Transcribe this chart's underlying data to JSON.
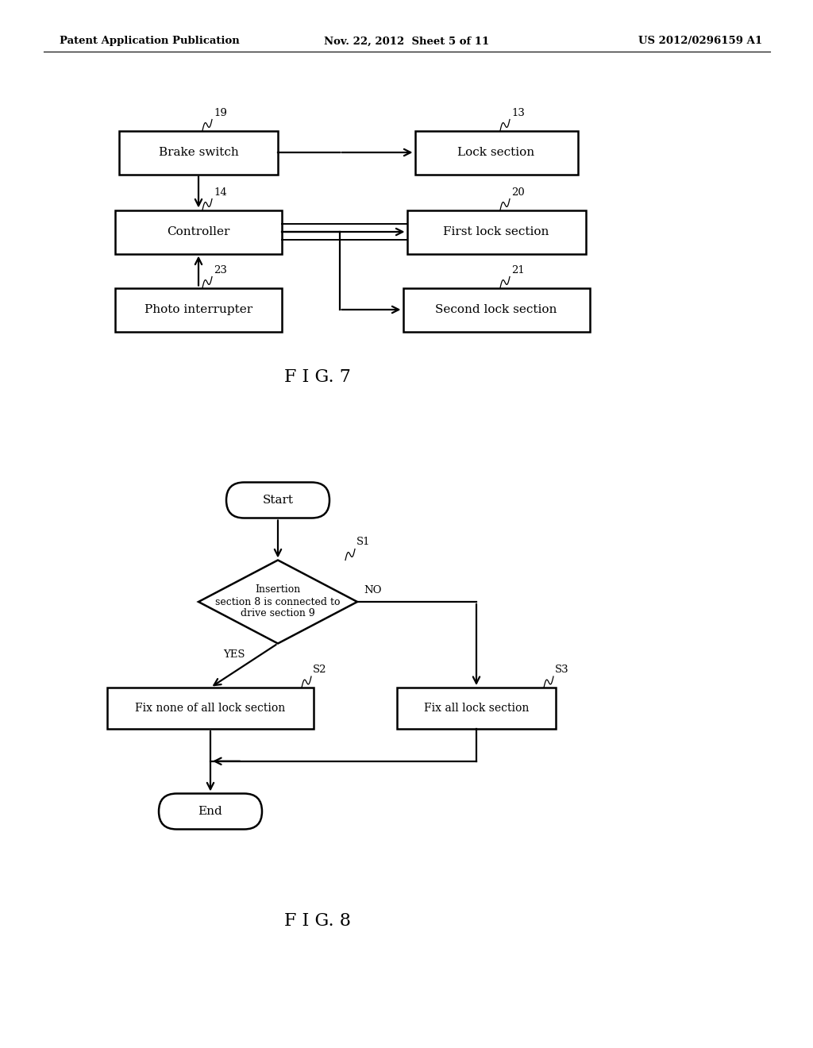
{
  "bg_color": "#ffffff",
  "header_left": "Patent Application Publication",
  "header_center": "Nov. 22, 2012  Sheet 5 of 11",
  "header_right": "US 2012/0296159 A1",
  "fig7_title": "F I G. 7",
  "fig8_title": "F I G. 8"
}
